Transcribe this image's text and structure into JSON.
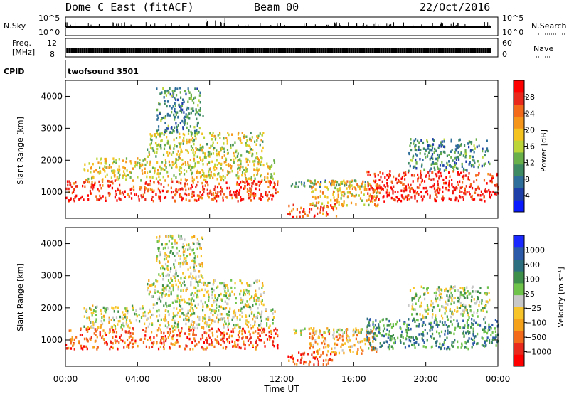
{
  "header": {
    "radar": "Dome C East (fitACF)",
    "beam": "Beam 00",
    "date": "22/Oct/2016"
  },
  "strips": {
    "nsky_label": "N.Sky",
    "nsearch_label": "N.Search",
    "nsky_ticks": [
      "10^5",
      "10^0"
    ],
    "nsearch_ticks": [
      "10^5",
      "10^0"
    ],
    "freq_label_1": "Freq.",
    "freq_label_2": "[MHz]",
    "freq_ticks": [
      "12",
      "8"
    ],
    "nave_label": "Nave",
    "nave_ticks": [
      "60",
      "0"
    ],
    "cpid_label": "CPID",
    "cpid_value": "twofsound 3501"
  },
  "chart_data": [
    {
      "type": "heatmap",
      "name": "power",
      "ylabel": "Slant Range [km]",
      "yticks": [
        "4000",
        "3000",
        "2000",
        "1000"
      ],
      "ylim": [
        180,
        4500
      ],
      "cbar_label": "Power [dB]",
      "cbar_ticks": [
        "28",
        "24",
        "20",
        "16",
        "12",
        "8",
        "4"
      ],
      "cbar_colors": [
        "#0a1aff",
        "#1f3fa8",
        "#2e6e9a",
        "#3e8a62",
        "#6ab04a",
        "#bcd63a",
        "#f5c320",
        "#f5961a",
        "#f26a1a",
        "#e8291c",
        "#ff0000"
      ],
      "echo_regions": [
        {
          "t0": 0.0,
          "t1": 11.8,
          "r0": 750,
          "r1": 1400,
          "level": 0.85
        },
        {
          "t0": 1.0,
          "t1": 11.6,
          "r0": 1400,
          "r1": 2100,
          "level": 0.55
        },
        {
          "t0": 4.5,
          "t1": 11.0,
          "r0": 2100,
          "r1": 2900,
          "level": 0.5
        },
        {
          "t0": 5.0,
          "t1": 7.6,
          "r0": 2900,
          "r1": 4300,
          "level": 0.3
        },
        {
          "t0": 12.3,
          "t1": 15.0,
          "r0": 250,
          "r1": 650,
          "level": 0.8
        },
        {
          "t0": 12.5,
          "t1": 17.0,
          "r0": 1200,
          "r1": 1400,
          "level": 0.3
        },
        {
          "t0": 13.5,
          "t1": 17.3,
          "r0": 600,
          "r1": 1400,
          "level": 0.6
        },
        {
          "t0": 16.7,
          "t1": 24.0,
          "r0": 750,
          "r1": 1700,
          "level": 0.9
        },
        {
          "t0": 19.0,
          "t1": 23.5,
          "r0": 1700,
          "r1": 2700,
          "level": 0.3
        }
      ]
    },
    {
      "type": "heatmap",
      "name": "velocity",
      "ylabel": "Slant Range [km]",
      "yticks": [
        "4000",
        "3000",
        "2000",
        "1000"
      ],
      "ylim": [
        180,
        4500
      ],
      "cbar_label": "Velocity [m s⁻¹]",
      "cbar_ticks": [
        "1000",
        "500",
        "100",
        "25",
        "−25",
        "−100",
        "−500",
        "−1000"
      ],
      "cbar_colors": [
        "#ff0000",
        "#e8291c",
        "#f26a1a",
        "#f5a21a",
        "#f7c52a",
        "#c8c8c8",
        "#6fc24a",
        "#3d8f4a",
        "#2d6f7e",
        "#2a5aa8",
        "#1a2aff"
      ],
      "echo_regions": [
        {
          "t0": 0.0,
          "t1": 11.8,
          "r0": 750,
          "r1": 1400,
          "level": 0.2
        },
        {
          "t0": 1.0,
          "t1": 11.6,
          "r0": 1400,
          "r1": 2100,
          "level": 0.5
        },
        {
          "t0": 4.5,
          "t1": 11.0,
          "r0": 2100,
          "r1": 2900,
          "level": 0.5
        },
        {
          "t0": 5.0,
          "t1": 7.6,
          "r0": 2900,
          "r1": 4300,
          "level": 0.5
        },
        {
          "t0": 12.3,
          "t1": 15.0,
          "r0": 250,
          "r1": 650,
          "level": 0.15
        },
        {
          "t0": 12.5,
          "t1": 17.0,
          "r0": 1200,
          "r1": 1400,
          "level": 0.5
        },
        {
          "t0": 13.5,
          "t1": 17.3,
          "r0": 600,
          "r1": 1400,
          "level": 0.35
        },
        {
          "t0": 16.7,
          "t1": 24.0,
          "r0": 750,
          "r1": 1700,
          "level": 0.72
        },
        {
          "t0": 19.0,
          "t1": 23.5,
          "r0": 1700,
          "r1": 2700,
          "level": 0.55
        }
      ]
    }
  ],
  "time_axis": {
    "label": "Time UT",
    "ticks": [
      "00:00",
      "04:00",
      "08:00",
      "12:00",
      "16:00",
      "20:00",
      "00:00"
    ],
    "range_hours": [
      0,
      24
    ]
  }
}
